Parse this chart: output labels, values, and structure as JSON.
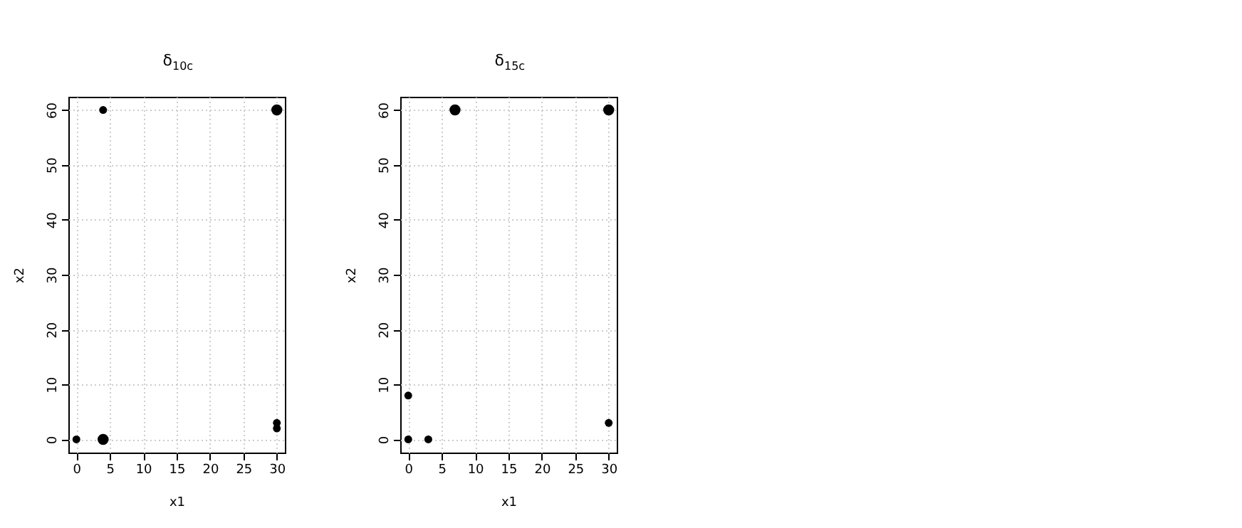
{
  "chart_data": [
    {
      "type": "bubble",
      "title": "δ$_{10c}$",
      "xlabel": "x1",
      "ylabel": "x2",
      "series": [
        {
          "color": "#000000",
          "x": [
            0,
            4,
            4,
            30,
            30,
            30
          ],
          "values": [
            0,
            0,
            60,
            60,
            3,
            2
          ],
          "sizes": [
            0.5,
            1,
            0.5,
            1,
            0.5,
            0.5
          ]
        }
      ],
      "xlim": [
        -1.2,
        31.2
      ],
      "xticks": [
        0,
        5,
        10,
        15,
        20,
        25,
        30
      ],
      "ylim": [
        -2.4,
        62.4
      ],
      "yticks": [
        0,
        10,
        20,
        30,
        40,
        50,
        60
      ],
      "grid": true,
      "marker": "circle"
    },
    {
      "type": "bubble",
      "title": "δ$_{15c}$",
      "xlabel": "x1",
      "ylabel": "x2",
      "series": [
        {
          "color": "#000000",
          "x": [
            0,
            0,
            3,
            7,
            30,
            30
          ],
          "values": [
            0,
            8,
            0,
            60,
            60,
            3
          ],
          "sizes": [
            0.5,
            0.5,
            0.5,
            1,
            1,
            0.5
          ]
        }
      ],
      "xlim": [
        -1.2,
        31.2
      ],
      "xticks": [
        0,
        5,
        10,
        15,
        20,
        25,
        30
      ],
      "ylim": [
        -2.4,
        62.4
      ],
      "yticks": [
        0,
        10,
        20,
        30,
        40,
        50,
        60
      ],
      "grid": true,
      "marker": "circle"
    }
  ]
}
